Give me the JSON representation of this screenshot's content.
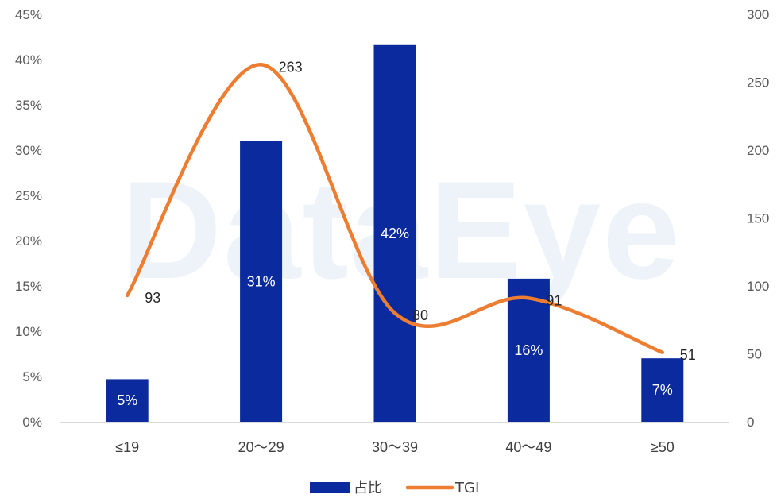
{
  "watermark": "DataEye",
  "chart_data": {
    "type": "bar",
    "categories": [
      "≤19",
      "20～29",
      "30～39",
      "40～49",
      "≥50"
    ],
    "series": [
      {
        "name": "占比",
        "type": "bar",
        "axis": "left",
        "color": "#0A2A9E",
        "values": [
          5,
          31,
          42,
          16,
          7
        ],
        "labels": [
          "5%",
          "31%",
          "42%",
          "16%",
          "7%"
        ],
        "display_values": [
          4.7,
          31,
          41.6,
          15.8,
          7
        ]
      },
      {
        "name": "TGI",
        "type": "line",
        "axis": "right",
        "color": "#ED7D31",
        "smooth": true,
        "values": [
          93,
          263,
          80,
          91,
          51
        ],
        "labels": [
          "93",
          "263",
          "80",
          "91",
          "51"
        ]
      }
    ],
    "y_left": {
      "min": 0,
      "max": 45,
      "step": 5,
      "tick_labels": [
        "0%",
        "5%",
        "10%",
        "15%",
        "20%",
        "25%",
        "30%",
        "35%",
        "40%",
        "45%"
      ]
    },
    "y_right": {
      "min": 0,
      "max": 300,
      "step": 50,
      "tick_labels": [
        "0",
        "50",
        "100",
        "150",
        "200",
        "250",
        "300"
      ]
    },
    "grid": false,
    "legend_position": "bottom",
    "legend": [
      {
        "name": "占比",
        "symbol": "bar",
        "color": "#0A2A9E"
      },
      {
        "name": "TGI",
        "symbol": "line",
        "color": "#ED7D31"
      }
    ]
  }
}
